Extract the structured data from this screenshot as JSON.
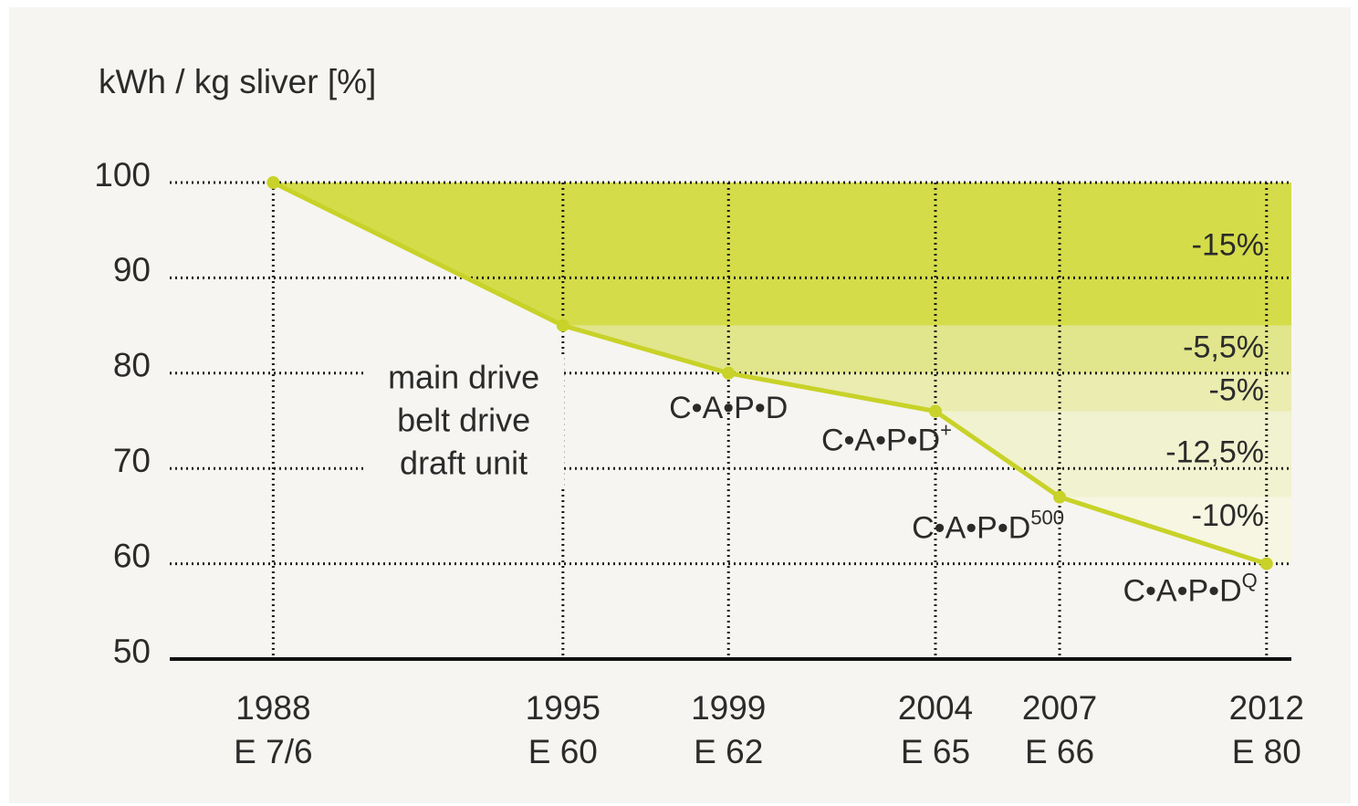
{
  "chart_data": {
    "type": "line",
    "y_label": "kWh / kg sliver [%]",
    "x": [
      1988,
      1995,
      1999,
      2004,
      2007,
      2012
    ],
    "x_sublabels": [
      "E 7/6",
      "E 60",
      "E 62",
      "E 65",
      "E 66",
      "E 80"
    ],
    "values": [
      100,
      85,
      80,
      76,
      67,
      60
    ],
    "color": "#c8d228",
    "xlim": [
      1985.5,
      2012.6
    ],
    "ylim": [
      50,
      100
    ],
    "yticks": [
      50,
      60,
      70,
      80,
      90,
      100
    ],
    "grid": true,
    "band_colors": [
      "#d4dc4a",
      "#e1e58c",
      "#eaecb0",
      "#f1f2cf",
      "#f6f6e2"
    ],
    "band_labels": [
      "-15%",
      "-5,5%",
      "-5%",
      "-12,5%",
      "-10%"
    ],
    "annotation": [
      "main drive",
      "belt drive",
      "draft unit"
    ],
    "point_labels": [
      null,
      null,
      {
        "text": "C•A•P•D"
      },
      {
        "text": "C•A•P•D",
        "sup": "+"
      },
      {
        "text": "C•A•P•D",
        "sup": "500"
      },
      {
        "text": "C•A•P•D",
        "sup": "Q"
      }
    ]
  }
}
